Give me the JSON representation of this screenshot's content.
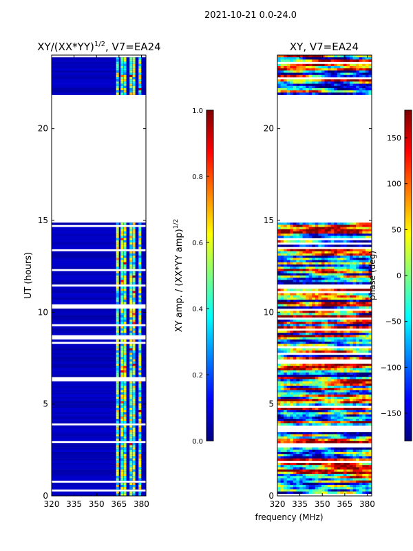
{
  "suptitle": "2021-10-21 0.0-24.0",
  "colormap": [
    "#00007f",
    "#0000ff",
    "#0080ff",
    "#00ffff",
    "#80ff80",
    "#ffff00",
    "#ff8000",
    "#ff0000",
    "#7f0000"
  ],
  "chart_data": [
    {
      "type": "heatmap",
      "title_main": "XY/(XX*YY)",
      "title_sup": "1/2",
      "title_tail": ", V7=EA24",
      "xlabel": "",
      "ylabel": "UT (hours)",
      "xlim": [
        320,
        383
      ],
      "ylim": [
        0,
        24
      ],
      "xticks": [
        320,
        335,
        350,
        365,
        380
      ],
      "yticks": [
        0,
        5,
        10,
        15,
        20
      ],
      "data_gap_hours": [
        14.9,
        21.9
      ],
      "bright_channels_mhz": [
        364,
        367,
        369,
        373,
        375,
        379
      ],
      "colorbar": {
        "label_main": "XY amp. / (XX*YY amp)",
        "label_sup": "1/2",
        "range": [
          0.0,
          1.0
        ],
        "ticks": [
          "0.0",
          "0.2",
          "0.4",
          "0.6",
          "0.8",
          "1.0"
        ]
      }
    },
    {
      "type": "heatmap",
      "title_main": "XY, V7=EA24",
      "xlabel": "frequency (MHz)",
      "ylabel": "",
      "xlim": [
        320,
        383
      ],
      "ylim": [
        0,
        24
      ],
      "xticks": [
        320,
        335,
        350,
        365,
        380
      ],
      "yticks": [
        0,
        5,
        10,
        15,
        20
      ],
      "data_gap_hours": [
        14.9,
        21.9
      ],
      "colorbar": {
        "label_main": "phase (deg)",
        "range": [
          -180,
          180
        ],
        "ticks": [
          "−150",
          "−100",
          "−50",
          "0",
          "50",
          "100",
          "150"
        ],
        "tick_values": [
          -150,
          -100,
          -50,
          0,
          50,
          100,
          150
        ]
      }
    }
  ]
}
